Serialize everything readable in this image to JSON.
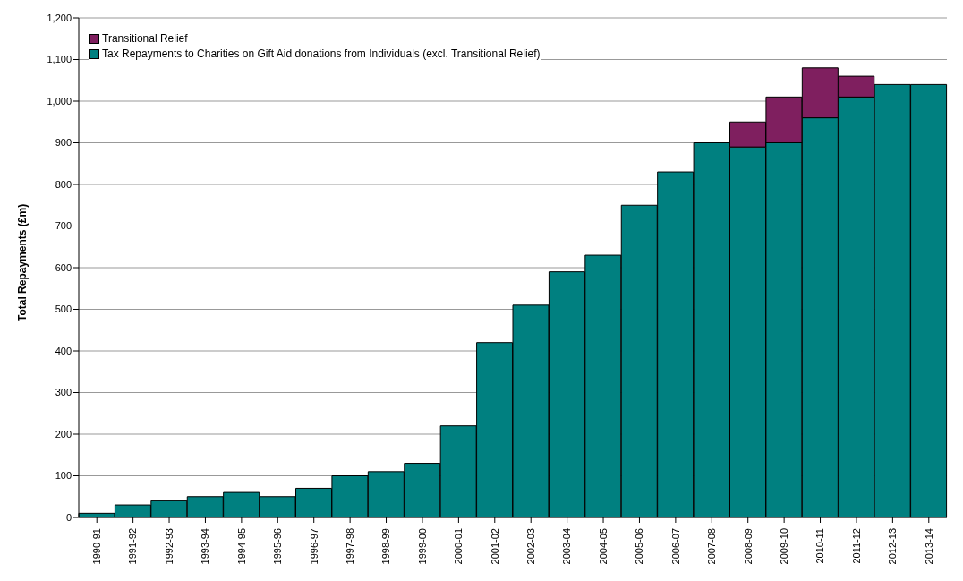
{
  "chart_data": {
    "type": "bar",
    "ylabel": "Total Repayments (£m)",
    "stacked": true,
    "grid": "y",
    "legend": "top left",
    "categories": [
      "1990-91",
      "1991-92",
      "1992-93",
      "1993-94",
      "1994-95",
      "1995-96",
      "1996-97",
      "1997-98",
      "1998-99",
      "1999-00",
      "2000-01",
      "2001-02",
      "2002-03",
      "2003-04",
      "2004-05",
      "2005-06",
      "2006-07",
      "2007-08",
      "2008-09",
      "2009-10",
      "2010-11",
      "2011-12",
      "2012-13",
      "2013-14"
    ],
    "series": [
      {
        "name": "Tax Repayments to Charities on Gift Aid donations from Individuals (excl. Transitional Relief)",
        "color": "#008080",
        "values": [
          10,
          30,
          40,
          50,
          60,
          50,
          70,
          100,
          110,
          130,
          220,
          420,
          510,
          590,
          630,
          750,
          830,
          900,
          890,
          900,
          960,
          1010,
          1040,
          1040
        ]
      },
      {
        "name": "Transitional Relief",
        "color": "#7f1f5f",
        "values": [
          null,
          null,
          null,
          null,
          null,
          null,
          null,
          null,
          null,
          null,
          null,
          null,
          null,
          null,
          null,
          null,
          null,
          null,
          60,
          110,
          120,
          50,
          null,
          null
        ]
      }
    ],
    "ylim": [
      0,
      1200
    ],
    "yticks": [
      0,
      100,
      200,
      300,
      400,
      500,
      600,
      700,
      800,
      900,
      {
        "value": 1000,
        "label": "1,000"
      },
      {
        "value": 1100,
        "label": "1,100"
      },
      {
        "value": 1200,
        "label": "1,200"
      }
    ]
  }
}
